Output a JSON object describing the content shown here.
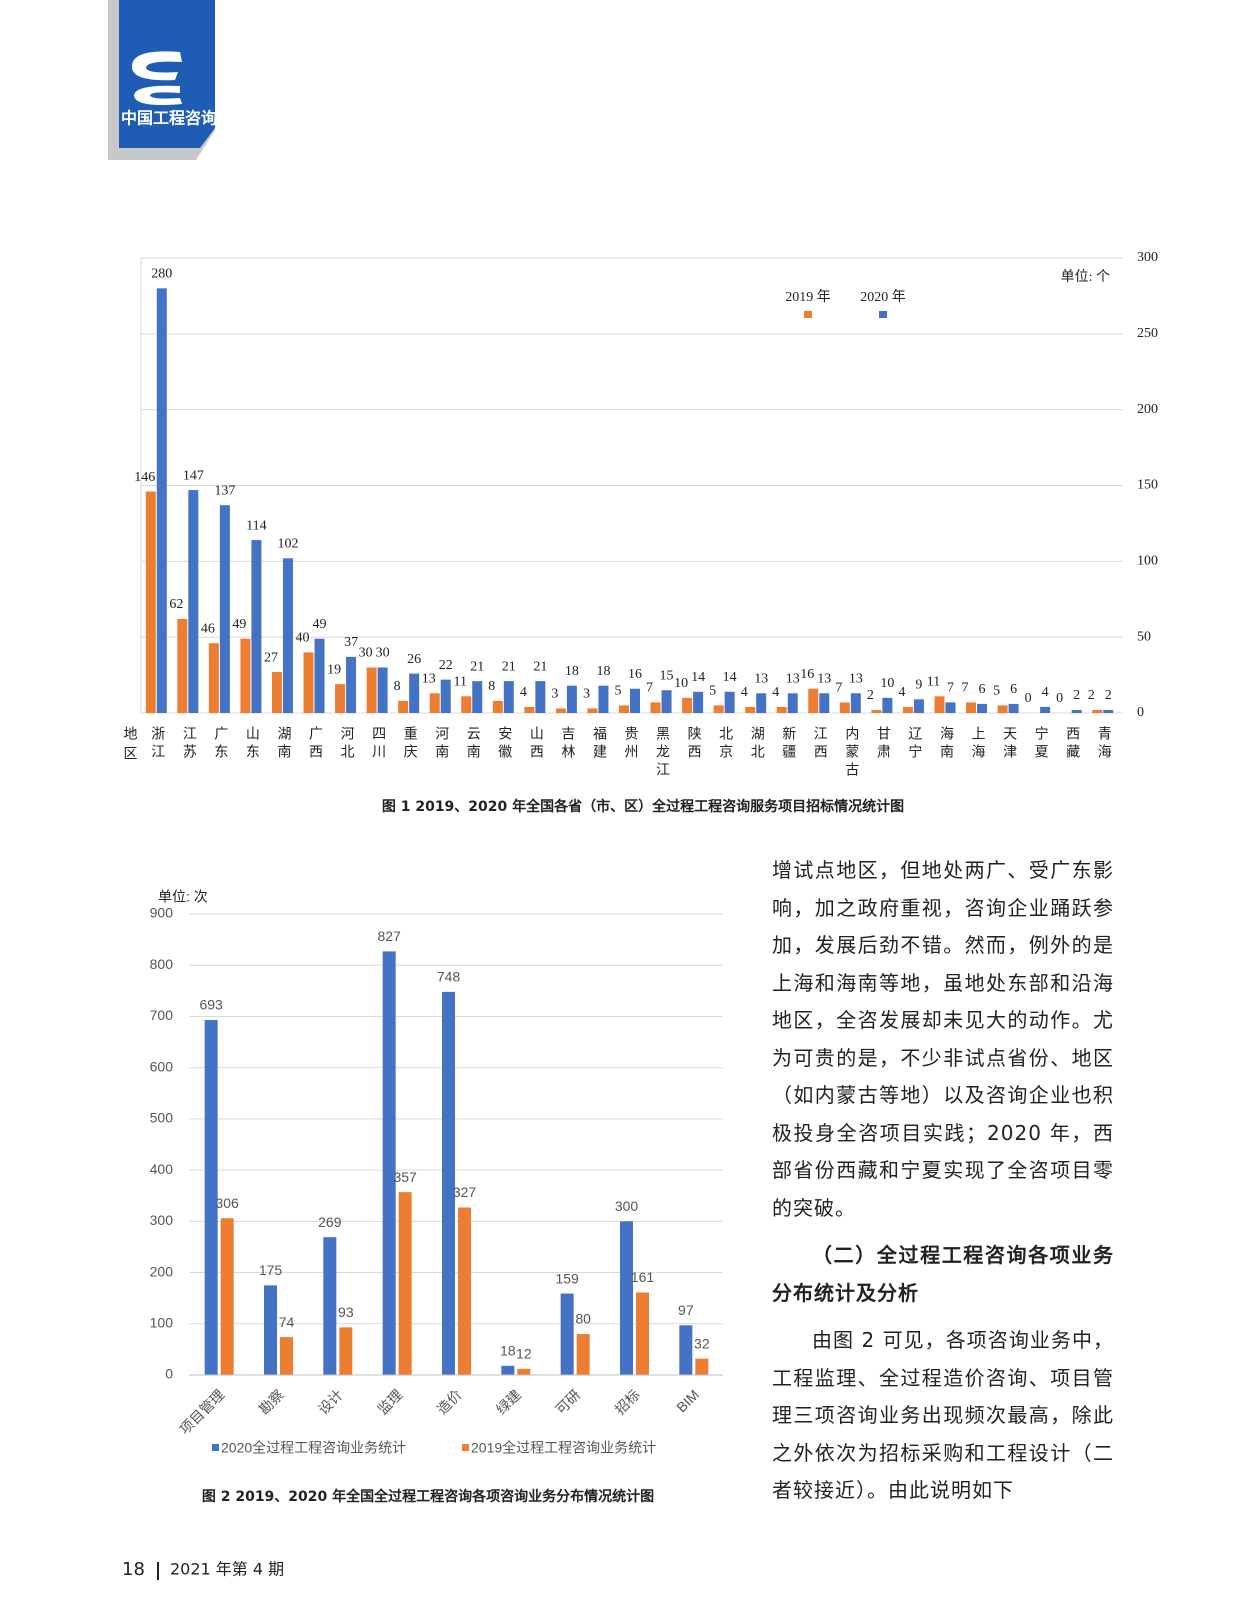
{
  "header": {
    "logo_text": "中国工程咨询"
  },
  "chart_data": [
    {
      "type": "bar",
      "unit": "单位: 个",
      "x_label": "地区",
      "categories": [
        "浙江",
        "江苏",
        "广东",
        "山东",
        "湖南",
        "广西",
        "河北",
        "四川",
        "重庆",
        "河南",
        "云南",
        "安徽",
        "山西",
        "吉林",
        "福建",
        "贵州",
        "黑龙江",
        "陕西",
        "北京",
        "湖北",
        "新疆",
        "江西",
        "内蒙古",
        "甘肃",
        "辽宁",
        "海南",
        "上海",
        "天津",
        "宁夏",
        "西藏",
        "青海"
      ],
      "series": [
        {
          "name": "2019 年",
          "color": "#ed7d31",
          "values": [
            146,
            62,
            46,
            49,
            27,
            40,
            19,
            30,
            8,
            13,
            11,
            8,
            4,
            3,
            3,
            5,
            7,
            10,
            5,
            4,
            4,
            16,
            7,
            2,
            4,
            11,
            7,
            5,
            0,
            0,
            2
          ]
        },
        {
          "name": "2020 年",
          "color": "#4472c4",
          "values": [
            280,
            147,
            137,
            114,
            102,
            49,
            37,
            30,
            26,
            22,
            21,
            21,
            21,
            18,
            18,
            16,
            15,
            14,
            14,
            13,
            13,
            13,
            13,
            10,
            9,
            7,
            6,
            6,
            4,
            2,
            2
          ]
        }
      ],
      "ylim": [
        0,
        300
      ],
      "yticks": [
        0,
        50,
        100,
        150,
        200,
        250,
        300
      ],
      "y_axis_side": "right",
      "grid": true,
      "legend": "top",
      "caption": "图 1  2019、2020 年全国各省（市、区）全过程工程咨询服务项目招标情况统计图"
    },
    {
      "type": "bar",
      "unit": "单位: 次",
      "categories": [
        "项目管理",
        "勘察",
        "设计",
        "监理",
        "造价",
        "绿建",
        "可研",
        "招标",
        "BIM"
      ],
      "series": [
        {
          "name": "2020全过程工程咨询业务统计",
          "color": "#4472c4",
          "values": [
            693,
            175,
            269,
            827,
            748,
            18,
            159,
            300,
            97
          ]
        },
        {
          "name": "2019全过程工程咨询业务统计",
          "color": "#ed7d31",
          "values": [
            306,
            74,
            93,
            357,
            327,
            12,
            80,
            161,
            32
          ]
        }
      ],
      "ylim": [
        0,
        900
      ],
      "yticks": [
        0,
        100,
        200,
        300,
        400,
        500,
        600,
        700,
        800,
        900
      ],
      "y_axis_side": "left",
      "grid": true,
      "legend": "bottom",
      "caption": "图 2  2019、2020 年全国全过程工程咨询各项咨询业务分布情况统计图"
    }
  ],
  "body": {
    "paragraphs": [
      "增试点地区，但地处两广、受广东影响，加之政府重视，咨询企业踊跃参加，发展后劲不错。然而，例外的是上海和海南等地，虽地处东部和沿海地区，全咨发展却未见大的动作。尤为可贵的是，不少非试点省份、地区（如内蒙古等地）以及咨询企业也积极投身全咨项目实践；2020 年，西部省份西藏和宁夏实现了全咨项目零的突破。"
    ],
    "heading": "（二）全过程工程咨询各项业务分布统计及分析",
    "paragraph_after": "由图 2 可见，各项咨询业务中，工程监理、全过程造价咨询、项目管理三项咨询业务出现频次最高，除此之外依次为招标采购和工程设计（二者较接近）。由此说明如下"
  },
  "footer": {
    "page": "18",
    "issue": "2021 年第 4 期"
  }
}
